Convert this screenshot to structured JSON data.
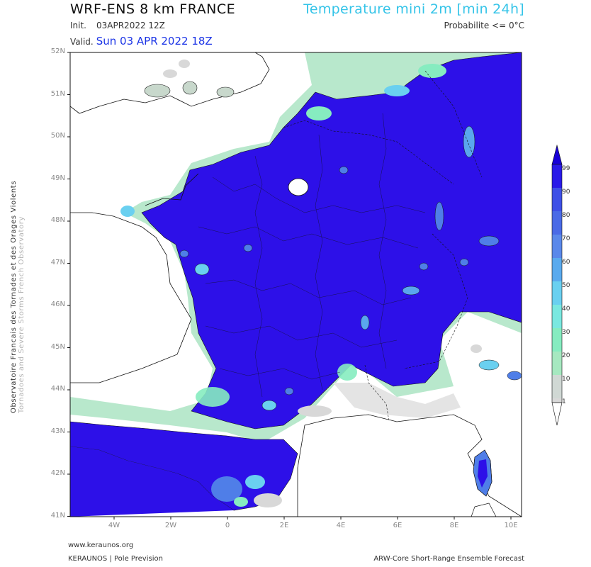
{
  "header": {
    "model_title": "WRF-ENS 8 km FRANCE",
    "product_title": "Temperature mini 2m [min 24h]",
    "init_label": "Init.",
    "init_value": "03APR2022 12Z",
    "valid_label": "Valid.",
    "valid_value": "Sun 03 APR 2022 18Z",
    "probability_label": "Probabilite <= 0°C"
  },
  "side_caption": {
    "line1": "Observatoire Francais des Tornades et des Orages Violents",
    "line2": "Tornadoes and Severe Storms French Observatory"
  },
  "map": {
    "lat_labels": [
      "52N",
      "51N",
      "50N",
      "49N",
      "48N",
      "47N",
      "46N",
      "45N",
      "44N",
      "43N",
      "42N",
      "41N"
    ],
    "lon_labels": [
      "4W",
      "2W",
      "0",
      "2E",
      "4E",
      "6E",
      "8E",
      "10E"
    ],
    "colors": {
      "sea": "#ffffff",
      "land": "#ffffff",
      "high_prob": "#2d10e8",
      "prob_90": "#4a2ae0"
    }
  },
  "colorbar": {
    "labels": [
      "99",
      "90",
      "80",
      "70",
      "60",
      "50",
      "40",
      "30",
      "20",
      "10",
      "1"
    ],
    "colors": [
      "#1800d8",
      "#2a1ae8",
      "#3e50e6",
      "#4f7ee8",
      "#5aa6ee",
      "#6ad0f0",
      "#7ae8e0",
      "#86ecc0",
      "#a6e8c0",
      "#c8d8d0",
      "#d8d8d8"
    ]
  },
  "footer": {
    "website": "www.keraunos.org",
    "org": "KERAUNOS | Pole Prevision",
    "system": "ARW-Core Short-Range Ensemble Forecast"
  }
}
